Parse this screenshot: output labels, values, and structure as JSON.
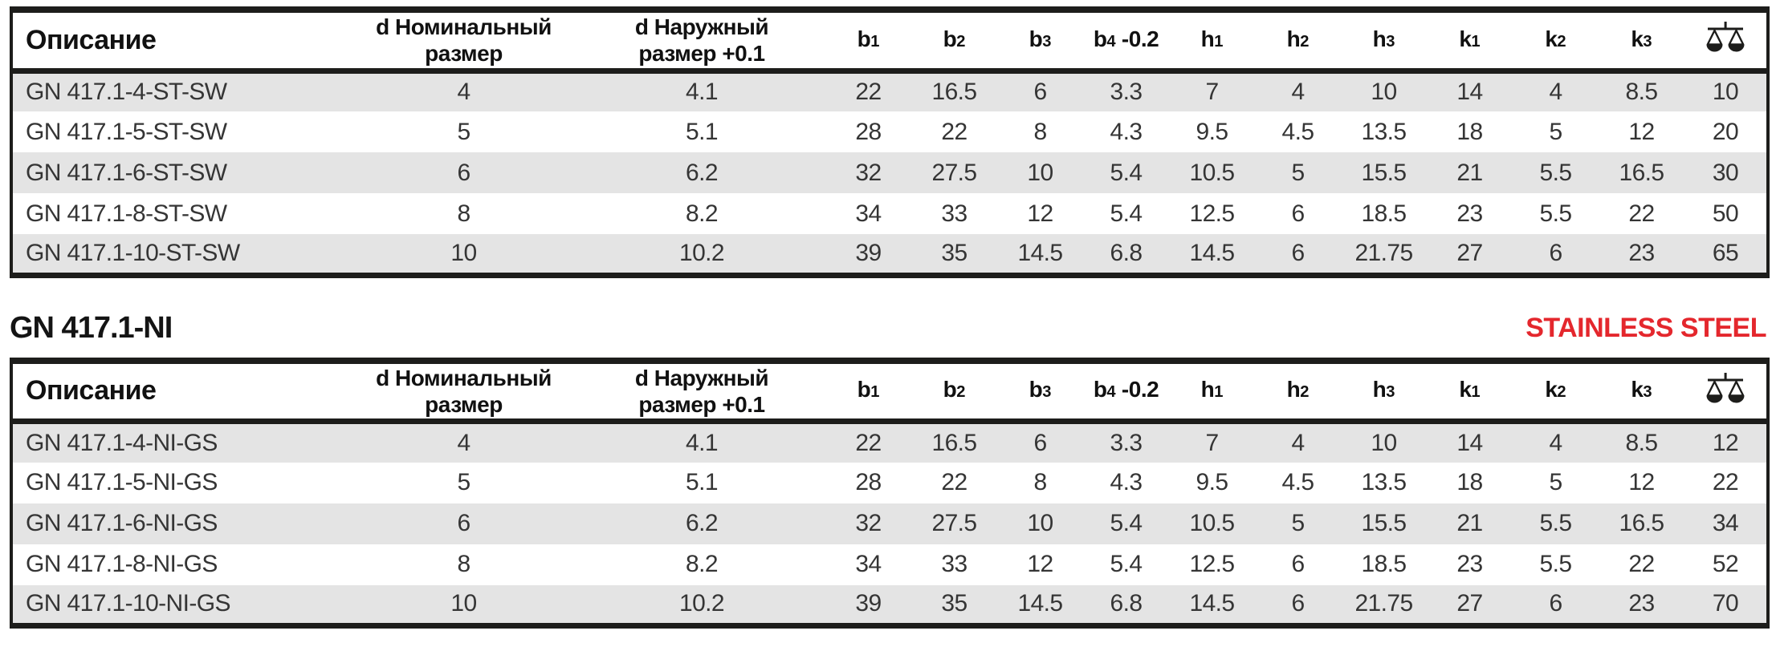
{
  "colors": {
    "ink": "#1d1d1b",
    "stripe_gray": "#e4e4e4",
    "accent_red": "#e4272d",
    "data_text": "#353535"
  },
  "section": {
    "title": "GN 417.1-NI",
    "badge": "STAINLESS STEEL"
  },
  "columns": [
    {
      "id": "description",
      "label": "Описание",
      "align": "left"
    },
    {
      "id": "d-nominal",
      "lines": [
        "d Номинальный",
        "размер"
      ]
    },
    {
      "id": "d-outer",
      "lines": [
        "d Наружный",
        "размер +0.1"
      ]
    },
    {
      "id": "b1",
      "base": "b",
      "sub": "1"
    },
    {
      "id": "b2",
      "base": "b",
      "sub": "2"
    },
    {
      "id": "b3",
      "base": "b",
      "sub": "3"
    },
    {
      "id": "b4",
      "base": "b",
      "sub": "4",
      "suffix": " -0.2"
    },
    {
      "id": "h1",
      "base": "h",
      "sub": "1"
    },
    {
      "id": "h2",
      "base": "h",
      "sub": "2"
    },
    {
      "id": "h3",
      "base": "h",
      "sub": "3"
    },
    {
      "id": "k1",
      "base": "k",
      "sub": "1"
    },
    {
      "id": "k2",
      "base": "k",
      "sub": "2"
    },
    {
      "id": "k3",
      "base": "k",
      "sub": "3"
    },
    {
      "id": "weight",
      "icon": "weight-scale-icon"
    }
  ],
  "tables": [
    {
      "id": "st-sw",
      "rows": [
        [
          "GN 417.1-4-ST-SW",
          "4",
          "4.1",
          "22",
          "16.5",
          "6",
          "3.3",
          "7",
          "4",
          "10",
          "14",
          "4",
          "8.5",
          "10"
        ],
        [
          "GN 417.1-5-ST-SW",
          "5",
          "5.1",
          "28",
          "22",
          "8",
          "4.3",
          "9.5",
          "4.5",
          "13.5",
          "18",
          "5",
          "12",
          "20"
        ],
        [
          "GN 417.1-6-ST-SW",
          "6",
          "6.2",
          "32",
          "27.5",
          "10",
          "5.4",
          "10.5",
          "5",
          "15.5",
          "21",
          "5.5",
          "16.5",
          "30"
        ],
        [
          "GN 417.1-8-ST-SW",
          "8",
          "8.2",
          "34",
          "33",
          "12",
          "5.4",
          "12.5",
          "6",
          "18.5",
          "23",
          "5.5",
          "22",
          "50"
        ],
        [
          "GN 417.1-10-ST-SW",
          "10",
          "10.2",
          "39",
          "35",
          "14.5",
          "6.8",
          "14.5",
          "6",
          "21.75",
          "27",
          "6",
          "23",
          "65"
        ]
      ]
    },
    {
      "id": "ni-gs",
      "rows": [
        [
          "GN 417.1-4-NI-GS",
          "4",
          "4.1",
          "22",
          "16.5",
          "6",
          "3.3",
          "7",
          "4",
          "10",
          "14",
          "4",
          "8.5",
          "12"
        ],
        [
          "GN 417.1-5-NI-GS",
          "5",
          "5.1",
          "28",
          "22",
          "8",
          "4.3",
          "9.5",
          "4.5",
          "13.5",
          "18",
          "5",
          "12",
          "22"
        ],
        [
          "GN 417.1-6-NI-GS",
          "6",
          "6.2",
          "32",
          "27.5",
          "10",
          "5.4",
          "10.5",
          "5",
          "15.5",
          "21",
          "5.5",
          "16.5",
          "34"
        ],
        [
          "GN 417.1-8-NI-GS",
          "8",
          "8.2",
          "34",
          "33",
          "12",
          "5.4",
          "12.5",
          "6",
          "18.5",
          "23",
          "5.5",
          "22",
          "52"
        ],
        [
          "GN 417.1-10-NI-GS",
          "10",
          "10.2",
          "39",
          "35",
          "14.5",
          "6.8",
          "14.5",
          "6",
          "21.75",
          "27",
          "6",
          "23",
          "70"
        ]
      ]
    }
  ]
}
